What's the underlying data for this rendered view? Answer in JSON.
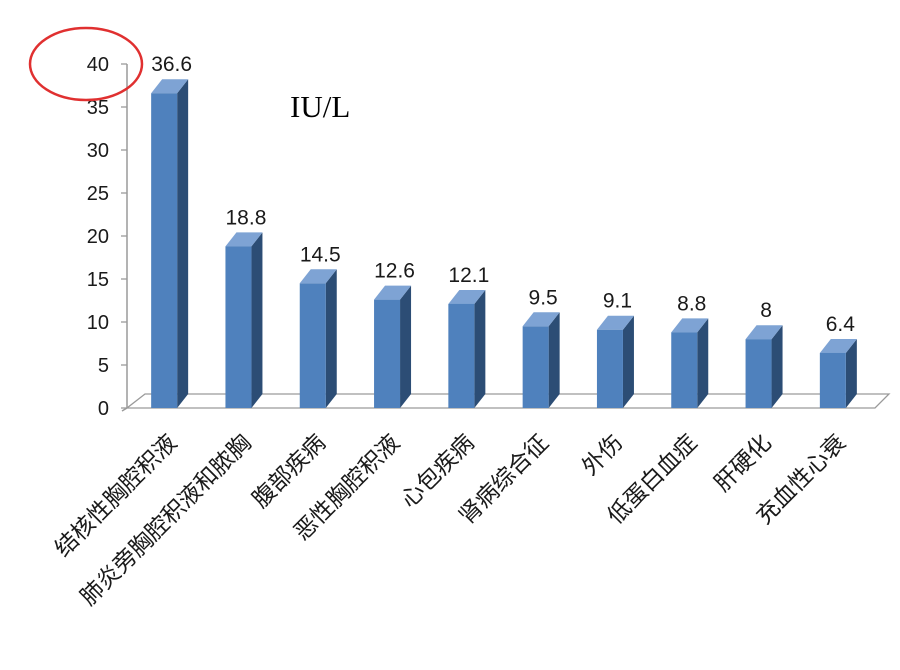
{
  "chart_data": {
    "type": "bar",
    "categories": [
      "结核性胸腔积液",
      "肺炎旁胸腔积液和脓胸",
      "腹部疾病",
      "恶性胸腔积液",
      "心包疾病",
      "肾病综合征",
      "外伤",
      "低蛋白血症",
      "肝硬化",
      "充血性心衰"
    ],
    "values": [
      36.6,
      18.8,
      14.5,
      12.6,
      12.1,
      9.5,
      9.1,
      8.8,
      8,
      6.4
    ],
    "data_labels": [
      "36.6",
      "18.8",
      "14.5",
      "12.6",
      "12.1",
      "9.5",
      "9.1",
      "8.8",
      "8",
      "6.4"
    ],
    "y_ticks": [
      "0",
      "5",
      "10",
      "15",
      "20",
      "25",
      "30",
      "35",
      "40"
    ],
    "ylim": [
      0,
      40
    ],
    "unit_label": "IU/L",
    "grid": false,
    "legend": "none",
    "colors": {
      "bar_front": "#4f81bd",
      "bar_side": "#2c4d75",
      "bar_top": "#7ea3d4",
      "axis": "#9a9a9a",
      "highlight_circle": "#e03030"
    },
    "annotations": [
      {
        "type": "circle",
        "target": "y_tick_max",
        "color": "#e03030"
      }
    ]
  }
}
